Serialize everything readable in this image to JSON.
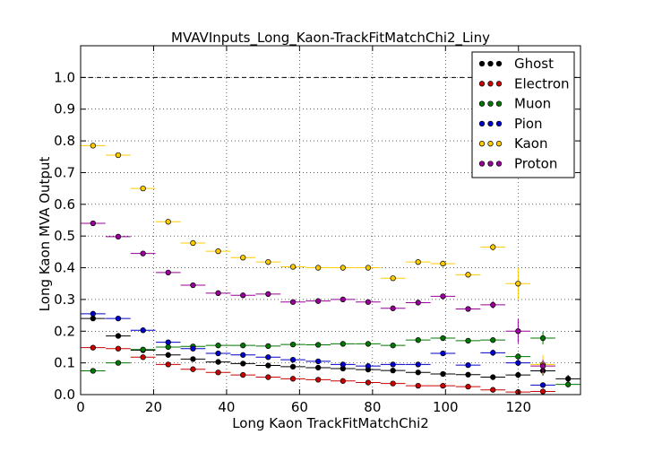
{
  "chart_data": {
    "type": "scatter",
    "title": "MVAVInputs_Long_Kaon-TrackFitMatchChi2_Liny",
    "xlabel": "Long Kaon TrackFitMatchChi2",
    "ylabel": "Long Kaon MVA Output",
    "xlim": [
      0,
      137
    ],
    "ylim": [
      0,
      1.1
    ],
    "xticks": [
      "0",
      "20",
      "40",
      "60",
      "80",
      "100",
      "120"
    ],
    "yticks": [
      "0.0",
      "0.1",
      "0.2",
      "0.3",
      "0.4",
      "0.5",
      "0.6",
      "0.7",
      "0.8",
      "0.9",
      "1.0"
    ],
    "grid": true,
    "reference_line_y": 1.0,
    "legend_position": "top-right",
    "bin_half_width": 3.4,
    "x": [
      3.4,
      10.3,
      17.1,
      24.0,
      30.8,
      37.7,
      44.5,
      51.4,
      58.2,
      65.1,
      71.9,
      78.8,
      85.6,
      92.5,
      99.3,
      106.2,
      113.0,
      119.9,
      126.7,
      133.6
    ],
    "series": [
      {
        "name": "Ghost",
        "color": "#000000",
        "values": [
          0.24,
          0.185,
          0.14,
          0.125,
          0.112,
          0.103,
          0.098,
          0.092,
          0.088,
          0.085,
          0.082,
          0.079,
          0.076,
          0.07,
          0.065,
          0.063,
          0.055,
          0.062,
          0.075,
          0.05
        ],
        "errors": [
          0.004,
          0.004,
          0.004,
          0.004,
          0.004,
          0.004,
          0.004,
          0.004,
          0.004,
          0.004,
          0.004,
          0.004,
          0.004,
          0.005,
          0.005,
          0.006,
          0.007,
          0.01,
          0.015,
          0.012
        ]
      },
      {
        "name": "Electron",
        "color": "#cc0000",
        "values": [
          0.148,
          0.145,
          0.118,
          0.095,
          0.08,
          0.07,
          0.062,
          0.055,
          0.05,
          0.047,
          0.043,
          0.038,
          0.035,
          0.028,
          0.028,
          0.025,
          0.015,
          0.008,
          0.01,
          null
        ],
        "errors": [
          0.004,
          0.004,
          0.004,
          0.004,
          0.004,
          0.004,
          0.004,
          0.004,
          0.004,
          0.004,
          0.004,
          0.004,
          0.004,
          0.004,
          0.004,
          0.004,
          0.005,
          0.004,
          0.005,
          null
        ]
      },
      {
        "name": "Muon",
        "color": "#007700",
        "values": [
          0.075,
          0.1,
          0.142,
          0.15,
          0.152,
          0.155,
          0.155,
          0.153,
          0.158,
          0.157,
          0.16,
          0.16,
          0.155,
          0.172,
          0.178,
          0.17,
          0.172,
          0.12,
          0.178,
          0.032
        ],
        "errors": [
          0.004,
          0.004,
          0.004,
          0.004,
          0.004,
          0.004,
          0.004,
          0.004,
          0.004,
          0.004,
          0.004,
          0.004,
          0.005,
          0.005,
          0.006,
          0.006,
          0.007,
          0.01,
          0.02,
          0.006
        ]
      },
      {
        "name": "Pion",
        "color": "#0000cc",
        "values": [
          0.255,
          0.24,
          0.203,
          0.165,
          0.145,
          0.13,
          0.125,
          0.118,
          0.11,
          0.105,
          0.095,
          0.09,
          0.095,
          0.095,
          0.13,
          0.093,
          0.132,
          0.1,
          0.03,
          null
        ],
        "errors": [
          0.004,
          0.004,
          0.004,
          0.004,
          0.004,
          0.004,
          0.004,
          0.004,
          0.004,
          0.004,
          0.004,
          0.004,
          0.004,
          0.005,
          0.006,
          0.006,
          0.01,
          0.01,
          0.008,
          null
        ]
      },
      {
        "name": "Kaon",
        "color": "#ffcc00",
        "values": [
          0.785,
          0.755,
          0.65,
          0.545,
          0.478,
          0.452,
          0.432,
          0.418,
          0.403,
          0.4,
          0.4,
          0.4,
          0.367,
          0.418,
          0.413,
          0.378,
          0.465,
          0.35,
          0.095,
          null
        ],
        "errors": [
          0.004,
          0.004,
          0.004,
          0.004,
          0.004,
          0.004,
          0.004,
          0.004,
          0.004,
          0.004,
          0.004,
          0.005,
          0.006,
          0.007,
          0.008,
          0.008,
          0.012,
          0.05,
          0.03,
          null
        ]
      },
      {
        "name": "Proton",
        "color": "#990099",
        "values": [
          0.54,
          0.498,
          0.445,
          0.385,
          0.345,
          0.32,
          0.313,
          0.317,
          0.292,
          0.295,
          0.3,
          0.292,
          0.272,
          0.29,
          0.31,
          0.27,
          0.283,
          0.2,
          0.09,
          null
        ],
        "errors": [
          0.004,
          0.004,
          0.004,
          0.004,
          0.004,
          0.004,
          0.004,
          0.004,
          0.004,
          0.004,
          0.004,
          0.004,
          0.005,
          0.005,
          0.006,
          0.007,
          0.012,
          0.038,
          0.02,
          null
        ]
      }
    ]
  }
}
